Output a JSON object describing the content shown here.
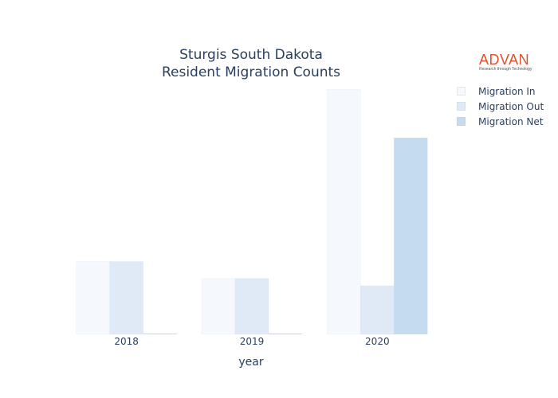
{
  "logo": {
    "text": "ADVAN",
    "tagline": "Research through Technology"
  },
  "colors": {
    "in": "#f5f9fd",
    "out": "#e0eaf6",
    "net": "#c5dbef",
    "logo": "#e0502a"
  },
  "chart_data": {
    "type": "bar",
    "title": [
      "Sturgis South Dakota",
      "Resident Migration Counts"
    ],
    "xlabel": "year",
    "ylabel": "",
    "categories": [
      "2018",
      "2019",
      "2020"
    ],
    "series": [
      {
        "name": "Migration In",
        "values": [
          30,
          23,
          101
        ]
      },
      {
        "name": "Migration Out",
        "values": [
          30,
          23,
          20
        ]
      },
      {
        "name": "Migration Net",
        "values": [
          0,
          0,
          81
        ]
      }
    ],
    "ylim": [
      0,
      105
    ],
    "grid": false,
    "legend_position": "top-right"
  }
}
